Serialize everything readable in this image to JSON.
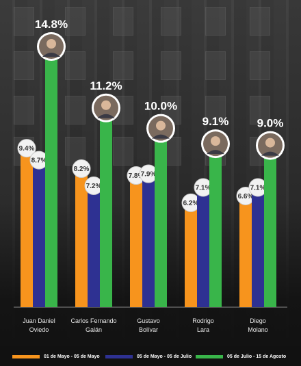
{
  "chart_data": {
    "type": "bar",
    "categories": [
      "Juan Daniel\nOviedo",
      "Carlos Fernando\nGalán",
      "Gustavo\nBolívar",
      "Rodrigo\nLara",
      "Diego\nMolano"
    ],
    "series": [
      {
        "name": "01 de Mayo - 05 de Mayo",
        "color": "#f7941d",
        "values": [
          9.4,
          8.2,
          7.8,
          6.2,
          6.6
        ],
        "labels": [
          "9.4%",
          "8.2%",
          "7.8%",
          "6.2%",
          "6.6%"
        ]
      },
      {
        "name": "05 de Mayo - 05 de Julio",
        "color": "#2e3192",
        "values": [
          8.7,
          7.2,
          7.9,
          7.1,
          7.1
        ],
        "labels": [
          "8.7%",
          "7.2%",
          "7.9%",
          "7.1%",
          "7.1%"
        ]
      },
      {
        "name": "05 de Julio - 15 de Agosto",
        "color": "#39b54a",
        "values": [
          14.8,
          11.2,
          10.0,
          9.1,
          9.0
        ],
        "labels": [
          "14.8%",
          "11.2%",
          "10.0%",
          "9.1%",
          "9.0%"
        ]
      }
    ],
    "ylim": [
      0,
      16
    ],
    "grid": false,
    "legend_position": "bottom",
    "xlabel": "",
    "ylabel": ""
  }
}
